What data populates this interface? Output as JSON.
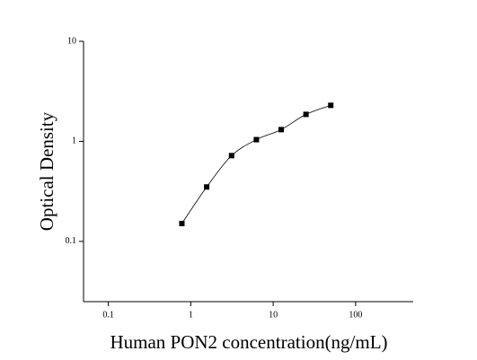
{
  "chart_data": {
    "type": "scatter",
    "xlabel": "Human PON2 concentration(ng/mL)",
    "ylabel": "Optical Density",
    "x": [
      0.78,
      1.56,
      3.125,
      6.25,
      12.5,
      25,
      50
    ],
    "series": [
      {
        "color": "#000000",
        "values": [
          0.151,
          0.35,
          0.72,
          1.04,
          1.31,
          1.86,
          2.29
        ]
      }
    ],
    "xlim": [
      0.05,
      500
    ],
    "ylim": [
      0.025,
      10
    ],
    "xticks": [
      0.1,
      1,
      10,
      100
    ],
    "yticks": [
      0.1,
      1,
      10
    ],
    "xscale": "log",
    "yscale": "log",
    "fit_curve": true
  }
}
